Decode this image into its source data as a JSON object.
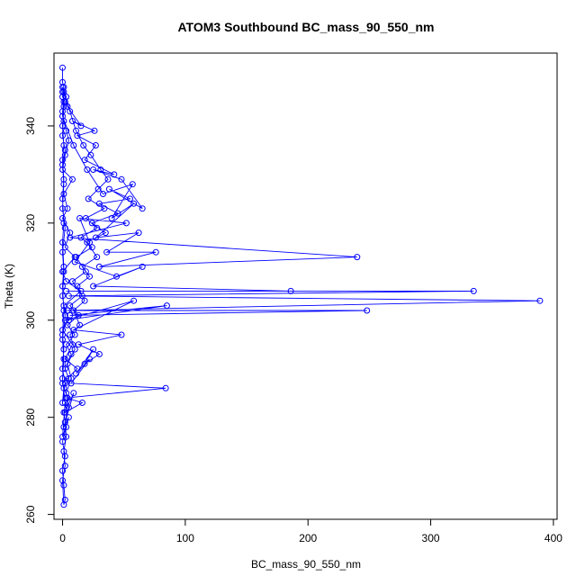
{
  "chart_data": {
    "type": "scatter",
    "title": "ATOM3 Southbound BC_mass_90_550_nm",
    "xlabel": "BC_mass_90_550_nm",
    "ylabel": "Theta (K)",
    "xlim": [
      -7,
      403
    ],
    "ylim": [
      259,
      355
    ],
    "x_ticks": [
      0,
      100,
      200,
      300,
      400
    ],
    "y_ticks": [
      260,
      280,
      300,
      320,
      340
    ],
    "grid": false,
    "legend": "none",
    "markers": "open circles connected by lines",
    "series": [
      {
        "color": "#0000ff",
        "points": [
          [
            0,
            352
          ],
          [
            0,
            349
          ],
          [
            1,
            348
          ],
          [
            0,
            346
          ],
          [
            2,
            345
          ],
          [
            0,
            343
          ],
          [
            1,
            341
          ],
          [
            3,
            339
          ],
          [
            5,
            337
          ],
          [
            2,
            334
          ],
          [
            0,
            331
          ],
          [
            8,
            329
          ],
          [
            1,
            326
          ],
          [
            4,
            323
          ],
          [
            0,
            321
          ],
          [
            6,
            318
          ],
          [
            2,
            315
          ],
          [
            10,
            313
          ],
          [
            0,
            310
          ],
          [
            3,
            308
          ],
          [
            15,
            306
          ],
          [
            1,
            303
          ],
          [
            5,
            300
          ],
          [
            0,
            298
          ],
          [
            8,
            295
          ],
          [
            2,
            292
          ],
          [
            12,
            290
          ],
          [
            0,
            287
          ],
          [
            4,
            284
          ],
          [
            1,
            281
          ],
          [
            3,
            278
          ],
          [
            0,
            275
          ],
          [
            2,
            272
          ],
          [
            0,
            269
          ],
          [
            1,
            266
          ],
          [
            2,
            263
          ],
          [
            1,
            262
          ],
          [
            0,
            267
          ],
          [
            2,
            270
          ],
          [
            1,
            273
          ],
          [
            3,
            276
          ],
          [
            2,
            279
          ],
          [
            5,
            282
          ],
          [
            3,
            285
          ],
          [
            7,
            288
          ],
          [
            4,
            291
          ],
          [
            10,
            294
          ],
          [
            6,
            297
          ],
          [
            14,
            299
          ],
          [
            9,
            302
          ],
          [
            18,
            304
          ],
          [
            12,
            307
          ],
          [
            22,
            309
          ],
          [
            16,
            311
          ],
          [
            28,
            313
          ],
          [
            20,
            316
          ],
          [
            35,
            318
          ],
          [
            24,
            320
          ],
          [
            45,
            322
          ],
          [
            30,
            324
          ],
          [
            55,
            325
          ],
          [
            38,
            327
          ],
          [
            65,
            323
          ],
          [
            48,
            329
          ],
          [
            25,
            331
          ],
          [
            42,
            330
          ],
          [
            18,
            333
          ],
          [
            27,
            336
          ],
          [
            12,
            338
          ],
          [
            26,
            339
          ],
          [
            8,
            341
          ],
          [
            15,
            340
          ],
          [
            4,
            344
          ],
          [
            1,
            347
          ],
          [
            0,
            342
          ],
          [
            9,
            336
          ],
          [
            20,
            331
          ],
          [
            33,
            326
          ],
          [
            57,
            328
          ],
          [
            40,
            321
          ],
          [
            58,
            324
          ],
          [
            27,
            317
          ],
          [
            62,
            318
          ],
          [
            36,
            314
          ],
          [
            76,
            314
          ],
          [
            30,
            311
          ],
          [
            240,
            313
          ],
          [
            6,
            317
          ],
          [
            52,
            320
          ],
          [
            14,
            321
          ],
          [
            22,
            316
          ],
          [
            10,
            312
          ],
          [
            44,
            309
          ],
          [
            65,
            311
          ],
          [
            25,
            307
          ],
          [
            186,
            306
          ],
          [
            3,
            306
          ],
          [
            335,
            306
          ],
          [
            5,
            305
          ],
          [
            389,
            304
          ],
          [
            4,
            302
          ],
          [
            248,
            302
          ],
          [
            6,
            301
          ],
          [
            85,
            303
          ],
          [
            2,
            300
          ],
          [
            58,
            304
          ],
          [
            9,
            298
          ],
          [
            48,
            297
          ],
          [
            13,
            295
          ],
          [
            30,
            293
          ],
          [
            18,
            291
          ],
          [
            25,
            294
          ],
          [
            11,
            289
          ],
          [
            22,
            292
          ],
          [
            7,
            287
          ],
          [
            84,
            286
          ],
          [
            3,
            284
          ],
          [
            16,
            283
          ],
          [
            2,
            281
          ],
          [
            9,
            285
          ],
          [
            1,
            278
          ],
          [
            5,
            280
          ],
          [
            0,
            276
          ],
          [
            2,
            283
          ],
          [
            0,
            288
          ],
          [
            1,
            292
          ],
          [
            0,
            296
          ],
          [
            2,
            301
          ],
          [
            0,
            305
          ],
          [
            1,
            310
          ],
          [
            0,
            314
          ],
          [
            2,
            319
          ],
          [
            0,
            323
          ],
          [
            1,
            328
          ],
          [
            0,
            332
          ],
          [
            2,
            335
          ],
          [
            0,
            338
          ],
          [
            1,
            344
          ],
          [
            0,
            348
          ],
          [
            3,
            346
          ],
          [
            6,
            343
          ],
          [
            11,
            339
          ],
          [
            17,
            336
          ],
          [
            23,
            334
          ],
          [
            31,
            331
          ],
          [
            37,
            329
          ],
          [
            29,
            327
          ],
          [
            21,
            325
          ],
          [
            34,
            323
          ],
          [
            19,
            321
          ],
          [
            28,
            319
          ],
          [
            15,
            317
          ],
          [
            24,
            315
          ],
          [
            11,
            313
          ],
          [
            19,
            310
          ],
          [
            8,
            308
          ],
          [
            16,
            305
          ],
          [
            6,
            303
          ],
          [
            13,
            301
          ],
          [
            4,
            299
          ],
          [
            10,
            297
          ],
          [
            3,
            295
          ],
          [
            7,
            293
          ],
          [
            2,
            290
          ],
          [
            5,
            288
          ],
          [
            1,
            286
          ],
          [
            0,
            283
          ],
          [
            2,
            287
          ],
          [
            0,
            290
          ],
          [
            1,
            294
          ],
          [
            0,
            297
          ],
          [
            1,
            302
          ],
          [
            0,
            307
          ],
          [
            1,
            311
          ],
          [
            0,
            316
          ],
          [
            1,
            320
          ],
          [
            0,
            325
          ],
          [
            1,
            329
          ],
          [
            0,
            333
          ],
          [
            1,
            336
          ],
          [
            0,
            340
          ],
          [
            1,
            345
          ],
          [
            0,
            347
          ]
        ]
      }
    ]
  }
}
